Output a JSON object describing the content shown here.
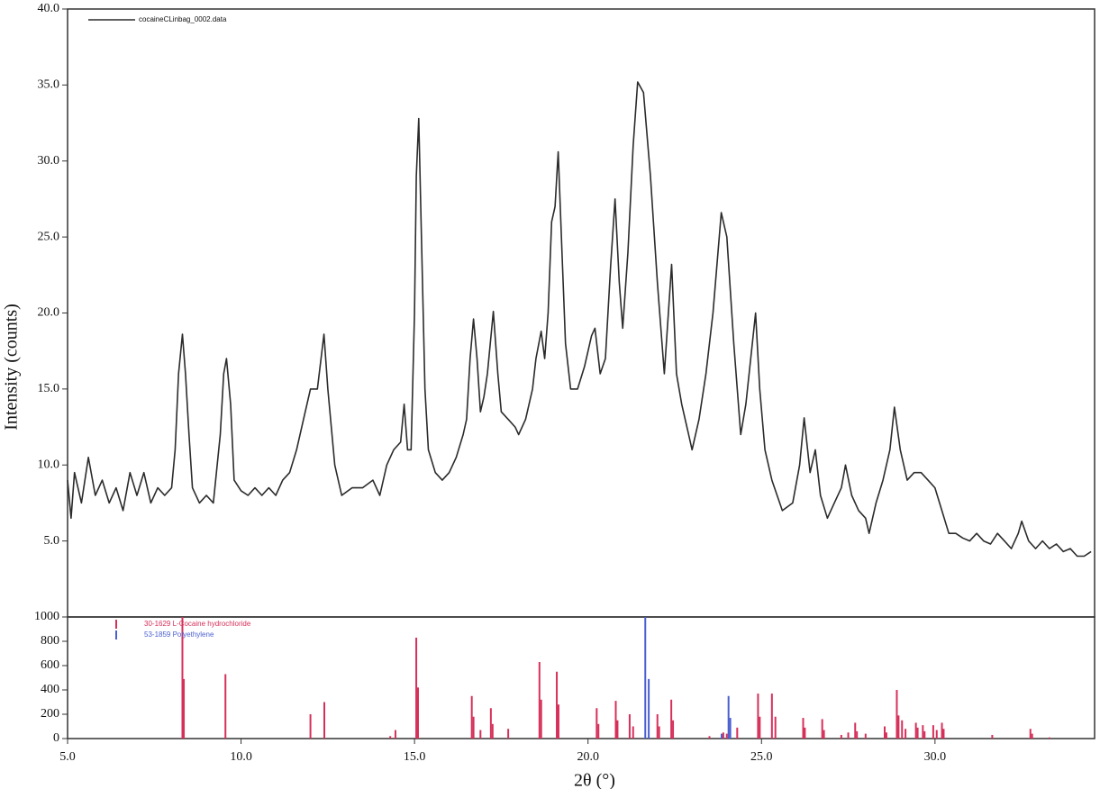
{
  "chart_data": [
    {
      "type": "line",
      "ylabel": "Intensity (counts)",
      "xlim": [
        5.0,
        34.6
      ],
      "ylim": [
        0,
        40
      ],
      "yticks": [
        {
          "value": 5,
          "label": "5.0"
        },
        {
          "value": 10,
          "label": "10.0"
        },
        {
          "value": 15,
          "label": "15.0"
        },
        {
          "value": 20,
          "label": "20.0"
        },
        {
          "value": 25,
          "label": "25.0"
        },
        {
          "value": 30,
          "label": "30.0"
        },
        {
          "value": 35,
          "label": "35.0"
        },
        {
          "value": 40,
          "label": "40.0"
        }
      ],
      "legend": "upper left",
      "x": [
        5.0,
        5.1,
        5.2,
        5.4,
        5.6,
        5.8,
        6.0,
        6.2,
        6.4,
        6.6,
        6.8,
        7.0,
        7.2,
        7.4,
        7.6,
        7.8,
        8.0,
        8.1,
        8.2,
        8.31,
        8.4,
        8.5,
        8.6,
        8.8,
        9.0,
        9.2,
        9.4,
        9.5,
        9.58,
        9.7,
        9.8,
        10.0,
        10.2,
        10.4,
        10.6,
        10.8,
        11.0,
        11.2,
        11.4,
        11.6,
        11.8,
        12.0,
        12.2,
        12.39,
        12.5,
        12.7,
        12.9,
        13.2,
        13.5,
        13.8,
        14.0,
        14.2,
        14.4,
        14.6,
        14.7,
        14.8,
        14.9,
        15.0,
        15.05,
        15.12,
        15.2,
        15.3,
        15.4,
        15.6,
        15.8,
        16.0,
        16.2,
        16.4,
        16.5,
        16.6,
        16.7,
        16.8,
        16.9,
        17.0,
        17.1,
        17.27,
        17.4,
        17.5,
        17.7,
        17.9,
        18.0,
        18.2,
        18.4,
        18.5,
        18.65,
        18.75,
        18.85,
        18.95,
        19.05,
        19.14,
        19.25,
        19.35,
        19.5,
        19.7,
        19.9,
        20.1,
        20.2,
        20.35,
        20.5,
        20.65,
        20.78,
        20.9,
        21.0,
        21.15,
        21.3,
        21.43,
        21.6,
        21.8,
        22.0,
        22.2,
        22.41,
        22.55,
        22.7,
        22.9,
        23.0,
        23.2,
        23.4,
        23.6,
        23.84,
        24.0,
        24.2,
        24.4,
        24.55,
        24.83,
        24.95,
        25.1,
        25.3,
        25.6,
        25.9,
        26.1,
        26.23,
        26.4,
        26.55,
        26.7,
        26.9,
        27.1,
        27.3,
        27.42,
        27.6,
        27.8,
        28.0,
        28.1,
        28.3,
        28.5,
        28.7,
        28.83,
        29.0,
        29.2,
        29.4,
        29.6,
        29.8,
        30.0,
        30.2,
        30.4,
        30.6,
        30.8,
        31.0,
        31.2,
        31.4,
        31.6,
        31.8,
        32.0,
        32.2,
        32.4,
        32.5,
        32.7,
        32.9,
        33.1,
        33.3,
        33.5,
        33.7,
        33.9,
        34.1,
        34.3,
        34.5
      ],
      "series": [
        {
          "name": "cocaineCLinbag_0002.data",
          "color": "#2b2b2b",
          "values": [
            9,
            6.5,
            9.5,
            7.5,
            10.5,
            8,
            9,
            7.5,
            8.5,
            7,
            9.5,
            8,
            9.5,
            7.5,
            8.5,
            8,
            8.5,
            11,
            16,
            18.6,
            16,
            12,
            8.5,
            7.5,
            8,
            7.5,
            12,
            16,
            17,
            14,
            9,
            8.3,
            8,
            8.5,
            8,
            8.5,
            8,
            9,
            9.5,
            11,
            13,
            15,
            15,
            18.6,
            15,
            10,
            8,
            8.5,
            8.5,
            9,
            8,
            10,
            11,
            11.5,
            14,
            11,
            11,
            20,
            29,
            32.8,
            25,
            15,
            11,
            9.5,
            9,
            9.5,
            10.5,
            12,
            13,
            17,
            19.6,
            17,
            13.5,
            14.5,
            16,
            20.1,
            16,
            13.5,
            13,
            12.5,
            12,
            13,
            15,
            17,
            18.8,
            17,
            20,
            26,
            27,
            30.6,
            24,
            18,
            15,
            15,
            16.5,
            18.5,
            19,
            16,
            17,
            23,
            27.5,
            22,
            19,
            24,
            31,
            35.2,
            34.5,
            29,
            22,
            16,
            23.2,
            16,
            14,
            12,
            11,
            13,
            16,
            20,
            26.6,
            25,
            18,
            12,
            14,
            20,
            15,
            11,
            9,
            7,
            7.5,
            10,
            13.1,
            9.5,
            11,
            8,
            6.5,
            7.5,
            8.5,
            10,
            8,
            7,
            6.5,
            5.5,
            7.5,
            9,
            11,
            13.8,
            11,
            9,
            9.5,
            9.5,
            9,
            8.5,
            7,
            5.5,
            5.5,
            5.2,
            5,
            5.5,
            5,
            4.8,
            5.5,
            5,
            4.5,
            5.5,
            6.3,
            5,
            4.5,
            5,
            4.5,
            4.8,
            4.3,
            4.5,
            4,
            4,
            4.3
          ]
        }
      ]
    },
    {
      "type": "stick",
      "xlabel": "2θ (°)",
      "xlim": [
        5.0,
        34.6
      ],
      "ylim": [
        0,
        1000
      ],
      "xticks": [
        {
          "value": 5,
          "label": "5.0"
        },
        {
          "value": 10,
          "label": "10.0"
        },
        {
          "value": 15,
          "label": "15.0"
        },
        {
          "value": 20,
          "label": "20.0"
        },
        {
          "value": 25,
          "label": "25.0"
        },
        {
          "value": 30,
          "label": "30.0"
        }
      ],
      "yticks": [
        0,
        200,
        400,
        600,
        800,
        1000
      ],
      "legend": "upper left",
      "series": [
        {
          "name": "30-1629 L-Cocaine hydrochloride",
          "color": "#d6305a",
          "x": [
            8.31,
            8.35,
            9.55,
            12.0,
            12.4,
            14.3,
            14.45,
            15.05,
            15.1,
            16.65,
            16.7,
            16.9,
            17.2,
            17.25,
            17.7,
            18.6,
            18.65,
            19.1,
            19.15,
            20.25,
            20.3,
            20.8,
            20.85,
            21.2,
            21.3,
            22.0,
            22.05,
            22.4,
            22.45,
            23.5,
            23.9,
            24.0,
            24.3,
            24.9,
            24.95,
            25.3,
            25.4,
            26.2,
            26.25,
            26.75,
            26.8,
            27.3,
            27.5,
            27.7,
            27.75,
            28.0,
            28.55,
            28.6,
            28.9,
            28.95,
            29.05,
            29.15,
            29.45,
            29.5,
            29.65,
            29.7,
            29.95,
            30.05,
            30.2,
            30.25,
            31.65,
            32.75,
            32.8,
            33.3
          ],
          "values": [
            1000,
            490,
            530,
            200,
            300,
            20,
            70,
            830,
            420,
            350,
            180,
            70,
            250,
            120,
            80,
            630,
            320,
            550,
            280,
            250,
            120,
            310,
            150,
            200,
            100,
            200,
            100,
            320,
            150,
            20,
            50,
            40,
            90,
            370,
            180,
            370,
            180,
            170,
            90,
            160,
            70,
            30,
            50,
            130,
            60,
            40,
            100,
            50,
            400,
            190,
            150,
            80,
            130,
            90,
            110,
            60,
            110,
            70,
            130,
            80,
            30,
            80,
            40,
            10
          ]
        },
        {
          "name": "53-1859 Polyethylene",
          "color": "#4a5fd0",
          "x": [
            21.65,
            21.75,
            23.85,
            24.05,
            24.1
          ],
          "values": [
            1000,
            490,
            40,
            350,
            170
          ]
        }
      ]
    }
  ]
}
